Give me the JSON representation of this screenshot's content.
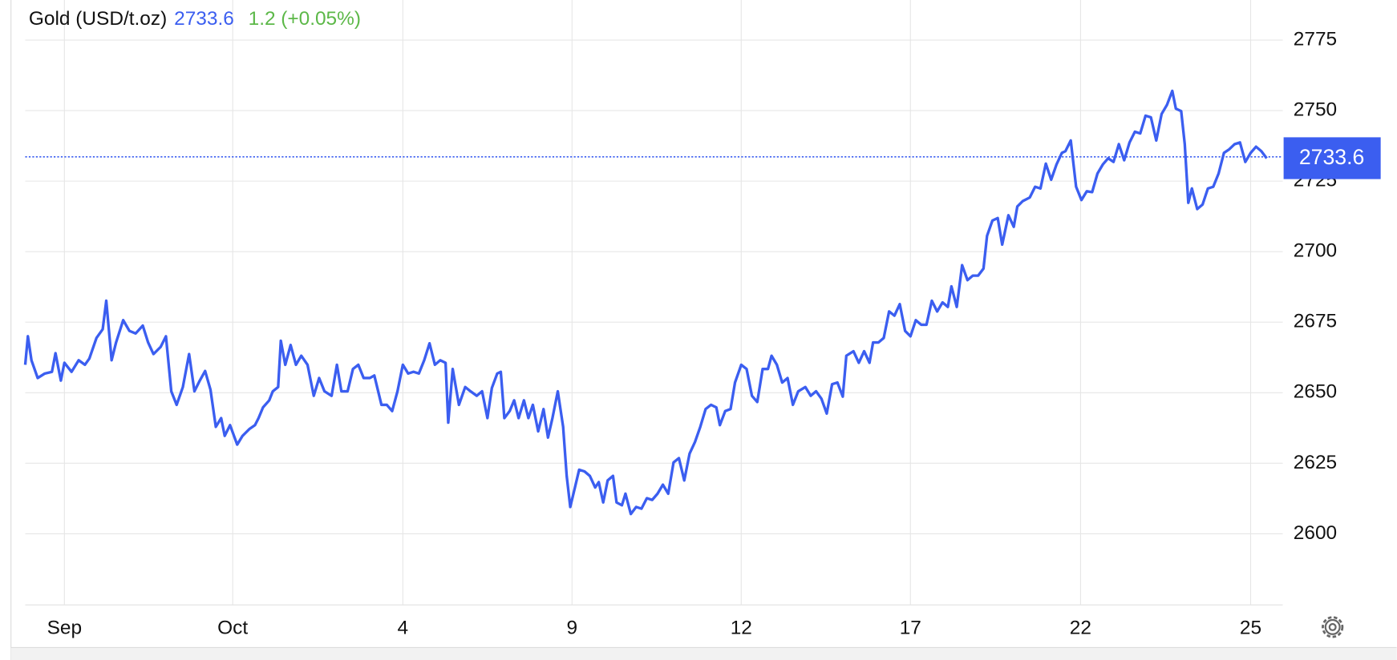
{
  "chart_data": {
    "type": "line",
    "title": "Gold (USD/t.oz)",
    "last_price": 2733.6,
    "change": 1.2,
    "change_percent_label": "(+0.05%)",
    "x": [
      0,
      3,
      7,
      14,
      22,
      30,
      34,
      40,
      44,
      52,
      60,
      67,
      72,
      80,
      87,
      91,
      97,
      102,
      110,
      117,
      124,
      132,
      138,
      144,
      152,
      158,
      164,
      170,
      177,
      184,
      190,
      196,
      202,
      208,
      214,
      220,
      224,
      230,
      238,
      244,
      252,
      258,
      262,
      267,
      274,
      278,
      284,
      287,
      292,
      298,
      304,
      310,
      317,
      324,
      330,
      336,
      344,
      350,
      355,
      362,
      368,
      374,
      380,
      387,
      392,
      400,
      406,
      412,
      418,
      424,
      430,
      436,
      442,
      448,
      454,
      460,
      466,
      472,
      475,
      480,
      487,
      494,
      500,
      507,
      513,
      519,
      524,
      530,
      534,
      538,
      544,
      549,
      554,
      560,
      565,
      570,
      576,
      582,
      587,
      592,
      598,
      604,
      608,
      612,
      618,
      622,
      628,
      634,
      640,
      644,
      649,
      654,
      660,
      664,
      670,
      674,
      680,
      686,
      692,
      698,
      704,
      710,
      716,
      722,
      728,
      734,
      740,
      746,
      752,
      758,
      764,
      770,
      776,
      780,
      786,
      792,
      797,
      804,
      810,
      816,
      822,
      828,
      834,
      838,
      844,
      850,
      856,
      862,
      868,
      876,
      882,
      888,
      894,
      900,
      906,
      912,
      918,
      922,
      930,
      936,
      942,
      948,
      952,
      958,
      964,
      970,
      976,
      982,
      988,
      994,
      1000,
      1006,
      1012,
      1018,
      1024,
      1030,
      1036,
      1040,
      1046,
      1052,
      1058,
      1064,
      1070,
      1076,
      1080,
      1086,
      1092,
      1097,
      1104,
      1110,
      1114,
      1120,
      1128,
      1134,
      1140,
      1146,
      1152,
      1158,
      1164,
      1168,
      1174,
      1180,
      1186,
      1192,
      1198,
      1204,
      1210,
      1216,
      1222,
      1228,
      1234,
      1240,
      1246,
      1252,
      1258,
      1264,
      1270,
      1276,
      1282,
      1288,
      1292,
      1298,
      1302,
      1306,
      1310,
      1316,
      1322,
      1328,
      1334,
      1340,
      1346,
      1352,
      1358,
      1364,
      1370,
      1376,
      1382,
      1388,
      1394
    ],
    "series": [
      {
        "color": "#3b5ef0",
        "values": [
          2659.9,
          2670.0,
          2661.5,
          2655.2,
          2656.8,
          2657.4,
          2664.0,
          2654.3,
          2660.6,
          2657.4,
          2661.5,
          2659.9,
          2662.1,
          2669.4,
          2672.5,
          2682.6,
          2661.5,
          2667.8,
          2675.7,
          2671.9,
          2671.0,
          2673.8,
          2667.8,
          2663.7,
          2666.2,
          2670.0,
          2650.5,
          2645.7,
          2652.0,
          2663.7,
          2650.5,
          2654.3,
          2657.7,
          2651.1,
          2637.9,
          2641.0,
          2634.7,
          2638.5,
          2631.6,
          2634.7,
          2637.2,
          2638.5,
          2641.0,
          2644.8,
          2647.3,
          2650.5,
          2652.0,
          2668.4,
          2659.9,
          2666.9,
          2659.9,
          2663.1,
          2659.9,
          2648.9,
          2655.2,
          2650.5,
          2648.9,
          2659.9,
          2650.5,
          2650.5,
          2658.4,
          2659.9,
          2655.2,
          2655.2,
          2656.1,
          2645.7,
          2645.7,
          2643.5,
          2650.5,
          2659.9,
          2656.8,
          2657.4,
          2656.8,
          2661.5,
          2667.5,
          2659.9,
          2661.5,
          2660.6,
          2639.4,
          2658.4,
          2645.7,
          2652.0,
          2650.5,
          2648.9,
          2650.5,
          2641.0,
          2651.7,
          2656.8,
          2657.4,
          2641.0,
          2643.5,
          2647.3,
          2641.0,
          2647.3,
          2641.0,
          2645.7,
          2636.3,
          2644.2,
          2634.1,
          2641.0,
          2650.5,
          2637.9,
          2620.5,
          2609.5,
          2617.4,
          2622.7,
          2622.1,
          2620.5,
          2616.4,
          2618.3,
          2611.1,
          2618.9,
          2620.5,
          2611.1,
          2610.1,
          2614.2,
          2607.0,
          2609.5,
          2608.9,
          2612.6,
          2612.0,
          2614.2,
          2617.4,
          2614.2,
          2625.3,
          2626.8,
          2618.9,
          2628.4,
          2632.5,
          2637.9,
          2644.2,
          2645.7,
          2644.8,
          2638.5,
          2643.5,
          2644.2,
          2653.6,
          2659.9,
          2658.4,
          2648.9,
          2646.7,
          2658.4,
          2658.4,
          2663.1,
          2659.9,
          2653.6,
          2655.2,
          2645.7,
          2650.5,
          2652.0,
          2648.9,
          2650.5,
          2647.9,
          2642.6,
          2653.0,
          2653.6,
          2648.6,
          2663.1,
          2664.7,
          2660.6,
          2664.7,
          2660.6,
          2667.8,
          2667.8,
          2669.4,
          2678.8,
          2677.3,
          2681.4,
          2671.9,
          2670.0,
          2675.7,
          2674.1,
          2674.1,
          2682.6,
          2678.8,
          2682.0,
          2680.4,
          2687.7,
          2680.4,
          2695.2,
          2689.9,
          2691.5,
          2691.5,
          2694.0,
          2705.6,
          2711.0,
          2711.9,
          2702.5,
          2712.9,
          2708.8,
          2716.0,
          2717.9,
          2719.2,
          2723.0,
          2722.4,
          2731.2,
          2725.5,
          2730.9,
          2735.0,
          2735.6,
          2739.4,
          2723.0,
          2718.3,
          2721.4,
          2721.1,
          2727.7,
          2730.9,
          2733.1,
          2731.8,
          2738.1,
          2732.4,
          2738.7,
          2742.5,
          2741.9,
          2748.2,
          2747.6,
          2739.4,
          2748.8,
          2752.0,
          2757.0,
          2750.7,
          2749.8,
          2738.1,
          2717.3,
          2722.4,
          2715.1,
          2716.7,
          2722.4,
          2723.0,
          2727.7,
          2735.0,
          2736.3,
          2738.1,
          2738.7,
          2731.8,
          2735.0,
          2737.2,
          2735.6,
          2733.1
        ]
      }
    ],
    "xlim": [
      0,
      1412
    ],
    "xticks": [
      {
        "value": 44,
        "label": "Sep"
      },
      {
        "value": 233,
        "label": "Oct"
      },
      {
        "value": 424,
        "label": "4"
      },
      {
        "value": 614,
        "label": "9"
      },
      {
        "value": 804,
        "label": "12"
      },
      {
        "value": 994,
        "label": "17"
      },
      {
        "value": 1185,
        "label": "22"
      },
      {
        "value": 1376,
        "label": "25"
      }
    ],
    "ylim": [
      2574.8,
      2789.2
    ],
    "yticks": [
      2600,
      2625,
      2650,
      2675,
      2700,
      2725,
      2750,
      2775
    ],
    "grid": true,
    "price_line": true
  }
}
